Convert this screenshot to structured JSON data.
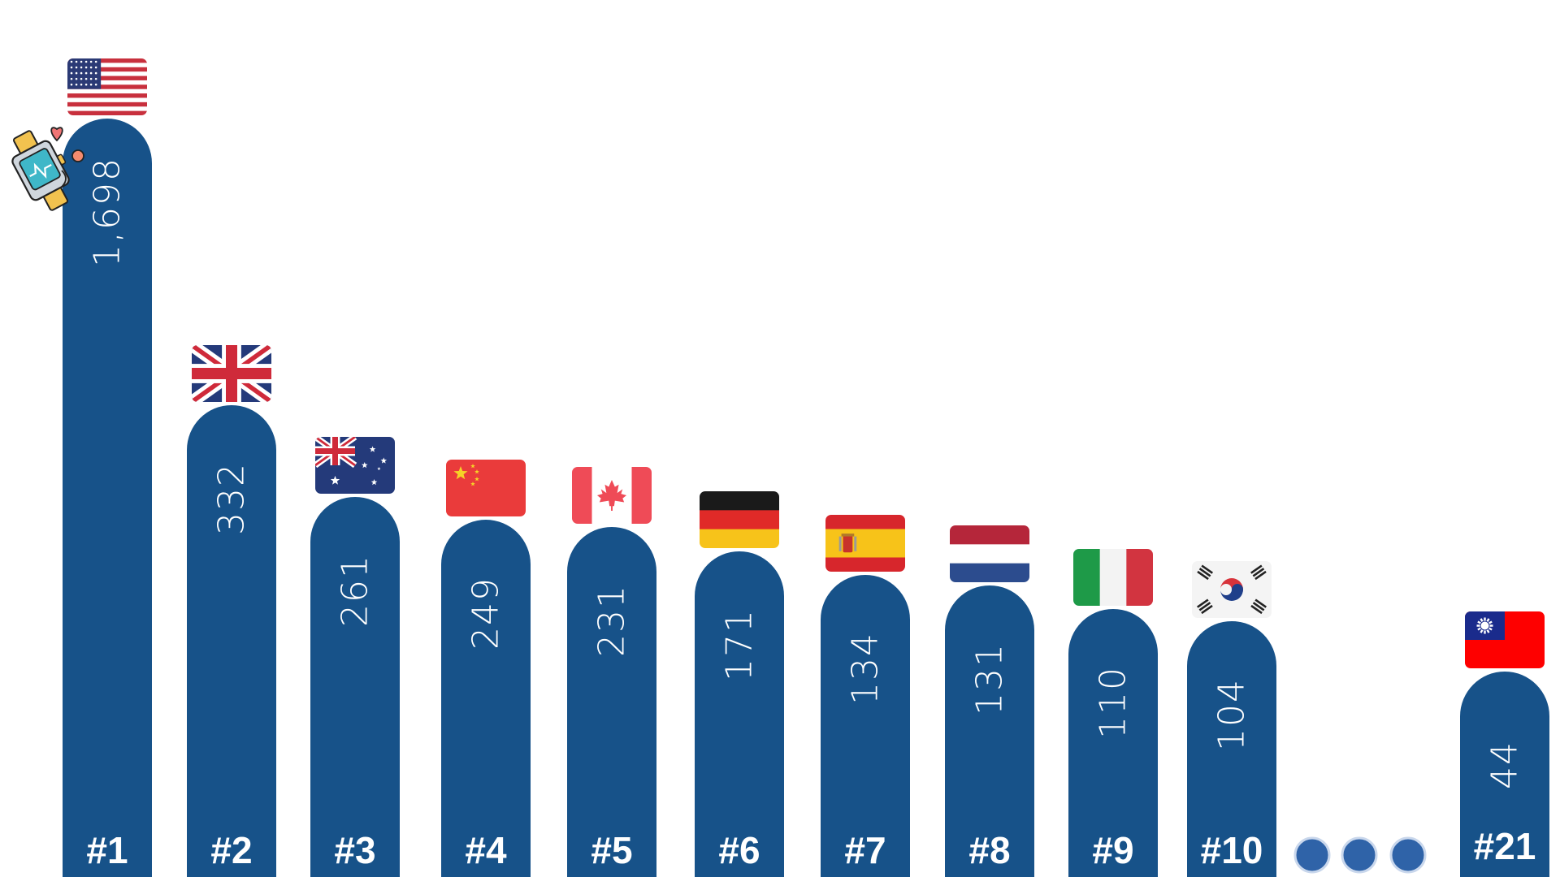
{
  "chart_data": {
    "type": "bar",
    "title": "",
    "xlabel": "",
    "ylabel": "",
    "categories": [
      "#1",
      "#2",
      "#3",
      "#4",
      "#5",
      "#6",
      "#7",
      "#8",
      "#9",
      "#10",
      "#21"
    ],
    "countries": [
      "United States",
      "United Kingdom",
      "Australia",
      "China",
      "Canada",
      "Germany",
      "Spain",
      "Netherlands",
      "Italy",
      "South Korea",
      "Taiwan"
    ],
    "value_labels": [
      "1,698",
      "332",
      "261",
      "249",
      "231",
      "171",
      "134",
      "131",
      "110",
      "104",
      "44"
    ],
    "series": [
      {
        "values": [
          1698,
          332,
          261,
          249,
          231,
          171,
          134,
          131,
          110,
          104,
          44
        ]
      }
    ],
    "ranking_gap_marker": "ellipsis (three dots) between #10 and #21",
    "flag_icons": [
      "flag-us",
      "flag-uk",
      "flag-australia",
      "flag-china",
      "flag-canada",
      "flag-germany",
      "flag-spain",
      "flag-netherlands",
      "flag-italy",
      "flag-south-korea",
      "flag-taiwan"
    ],
    "decoration_icon": "smartwatch-icon",
    "grid": false,
    "legend": "none",
    "scale": "non-linear (bar heights do not follow values proportionally)"
  },
  "colors": {
    "bar": "#175289",
    "dot": "#2f63a8",
    "dot_ring": "#c9d7ec",
    "text": "#ffffff"
  }
}
